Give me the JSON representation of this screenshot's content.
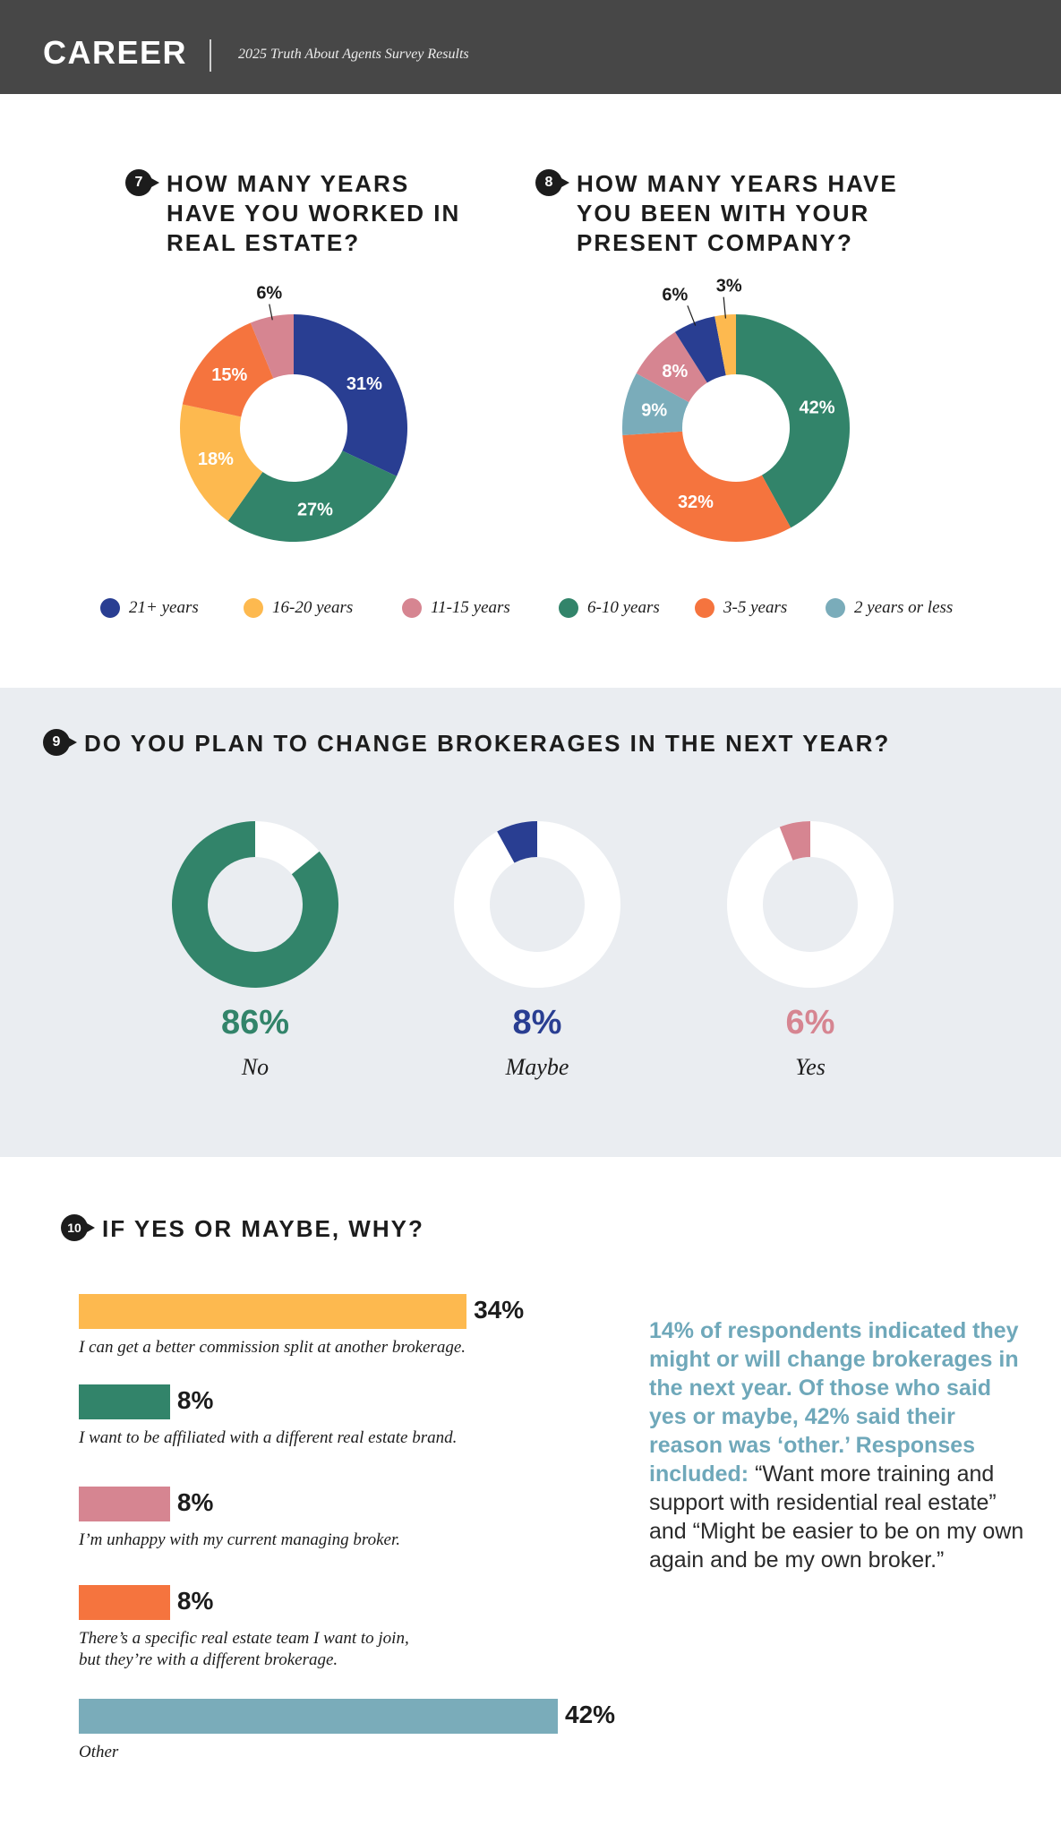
{
  "header": {
    "title": "CAREER",
    "subtitle": "2025 Truth About Agents Survey Results"
  },
  "colors": {
    "21plus": "#293e92",
    "16_20": "#fdb94f",
    "11_15": "#d68591",
    "6_10": "#32846a",
    "3_5": "#f5743e",
    "2_or_less": "#7aacba",
    "no": "#32846a",
    "maybe": "#293e92",
    "yes": "#d68591"
  },
  "q7": {
    "number": "7",
    "title": "How many years have you worked in real estate?"
  },
  "q8": {
    "number": "8",
    "title": "How many years have you been with your present company?"
  },
  "q9": {
    "number": "9",
    "title": "Do you plan to change brokerages in the next year?"
  },
  "q10": {
    "number": "10",
    "title": "If yes or maybe, why?"
  },
  "legend": [
    "21+ years",
    "16-20 years",
    "11-15 years",
    "6-10 years",
    "3-5 years",
    "2 years or less"
  ],
  "chart_data": [
    {
      "type": "pie",
      "id": "q7",
      "categories": [
        "21+ years",
        "6-10 years",
        "16-20 years",
        "3-5 years",
        "11-15 years"
      ],
      "values": [
        31,
        27,
        18,
        15,
        6
      ],
      "labels": [
        "31%",
        "27%",
        "18%",
        "15%",
        "6%"
      ],
      "colors": [
        "#293e92",
        "#32846a",
        "#fdb94f",
        "#f5743e",
        "#d68591"
      ]
    },
    {
      "type": "pie",
      "id": "q8",
      "categories": [
        "6-10 years",
        "3-5 years",
        "2 years or less",
        "11-15 years",
        "21+ years",
        "16-20 years"
      ],
      "values": [
        42,
        32,
        9,
        8,
        6,
        3
      ],
      "labels": [
        "42%",
        "32%",
        "9%",
        "8%",
        "6%",
        "3%"
      ],
      "colors": [
        "#32846a",
        "#f5743e",
        "#7aacba",
        "#d68591",
        "#293e92",
        "#fdb94f"
      ]
    },
    {
      "type": "pie",
      "id": "q9",
      "categories": [
        "No",
        "Maybe",
        "Yes"
      ],
      "values": [
        86,
        8,
        6
      ],
      "labels": [
        "86%",
        "8%",
        "6%"
      ],
      "colors": [
        "#32846a",
        "#293e92",
        "#d68591"
      ]
    },
    {
      "type": "bar",
      "id": "q10",
      "orientation": "horizontal",
      "categories": [
        "I can get a better commission split at another brokerage.",
        "I want to be affiliated with a different real estate brand.",
        "I’m unhappy with my current managing broker.",
        "There’s a specific real estate team I want to join, but they’re with a different brokerage.",
        "Other"
      ],
      "values": [
        34,
        8,
        8,
        8,
        42
      ],
      "labels": [
        "34%",
        "8%",
        "8%",
        "8%",
        "42%"
      ],
      "colors": [
        "#fdb94f",
        "#32846a",
        "#d68591",
        "#f5743e",
        "#7aacba"
      ]
    }
  ],
  "q10_captions": [
    [
      "I can get a better commission split at another brokerage."
    ],
    [
      "I want to be affiliated with a different real estate brand."
    ],
    [
      "I’m unhappy with my current managing broker."
    ],
    [
      "There’s a specific real estate team I want to join,",
      "but they’re with a different brokerage."
    ],
    [
      "Other"
    ]
  ],
  "note": {
    "strong": "14% of respondents indicated they might or will change brokerages in the next year. Of those who said yes or maybe, 42% said their reason was ‘other.’ Responses included:",
    "text": "“Want more training and support with residential real estate” and “Might be easier to be on my own again and be my own broker.”"
  }
}
